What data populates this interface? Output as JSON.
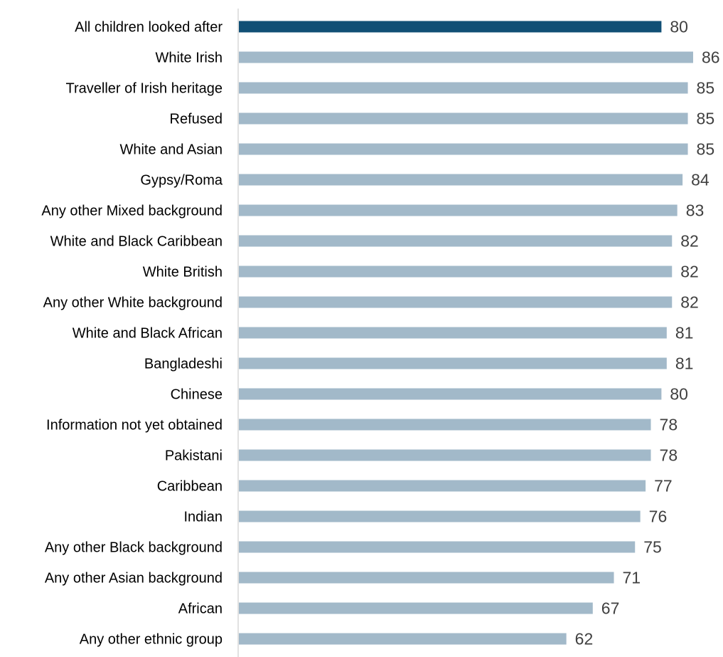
{
  "colors": {
    "highlight": "#104f75",
    "bar": "#a2b9c9",
    "axis": "#d9d9d9",
    "value_text": "#404040",
    "label_text": "#000000"
  },
  "chart_data": {
    "type": "bar",
    "orientation": "horizontal",
    "title": "",
    "xlabel": "",
    "ylabel": "",
    "xlim": [
      0,
      90
    ],
    "grid": false,
    "legend": "none",
    "highlight_index": 0,
    "categories": [
      "All children looked after",
      "White Irish",
      "Traveller of Irish heritage",
      "Refused",
      "White and Asian",
      "Gypsy/Roma",
      "Any other Mixed background",
      "White and Black Caribbean",
      "White British",
      "Any other White background",
      "White and Black African",
      "Bangladeshi",
      "Chinese",
      "Information not yet obtained",
      "Pakistani",
      "Caribbean",
      "Indian",
      "Any other Black background",
      "Any other Asian background",
      "African",
      "Any other ethnic group"
    ],
    "values": [
      80,
      86,
      85,
      85,
      85,
      84,
      83,
      82,
      82,
      82,
      81,
      81,
      80,
      78,
      78,
      77,
      76,
      75,
      71,
      67,
      62
    ],
    "value_labels": [
      "80",
      "86",
      "85",
      "85",
      "85",
      "84",
      "83",
      "82",
      "82",
      "82",
      "81",
      "81",
      "80",
      "78",
      "78",
      "77",
      "76",
      "75",
      "71",
      "67",
      "62"
    ]
  }
}
